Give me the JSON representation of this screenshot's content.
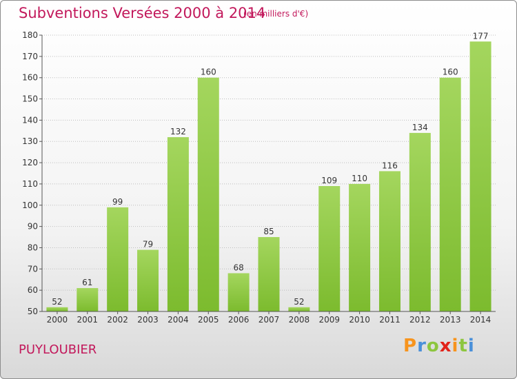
{
  "header": {
    "title": "Subventions Versées 2000 à 2014",
    "unit": "(en milliers d'€)"
  },
  "footer": {
    "commune": "PUYLOUBIER"
  },
  "logo": {
    "letters": [
      "P",
      "r",
      "o",
      "x",
      "i",
      "t",
      "i"
    ],
    "colors": [
      "#f7941d",
      "#4a90d9",
      "#8dc63f",
      "#e2231a",
      "#f7941d",
      "#8dc63f",
      "#4a90d9"
    ]
  },
  "chart_data": {
    "type": "bar",
    "title": "Subventions Versées 2000 à 2014",
    "subtitle": "(en milliers d'€)",
    "xlabel": "",
    "ylabel": "",
    "categories": [
      "2000",
      "2001",
      "2002",
      "2003",
      "2004",
      "2005",
      "2006",
      "2007",
      "2008",
      "2009",
      "2010",
      "2011",
      "2012",
      "2013",
      "2014"
    ],
    "values": [
      52,
      61,
      99,
      79,
      132,
      160,
      68,
      85,
      52,
      109,
      110,
      116,
      134,
      160,
      177
    ],
    "ylim": [
      50,
      180
    ],
    "yticks": [
      50,
      60,
      70,
      80,
      90,
      100,
      110,
      120,
      130,
      140,
      150,
      160,
      170,
      180
    ],
    "grid": "horizontal dotted",
    "bar_color": "#7cbb2e",
    "bar_color_light": "#a4d65e"
  }
}
